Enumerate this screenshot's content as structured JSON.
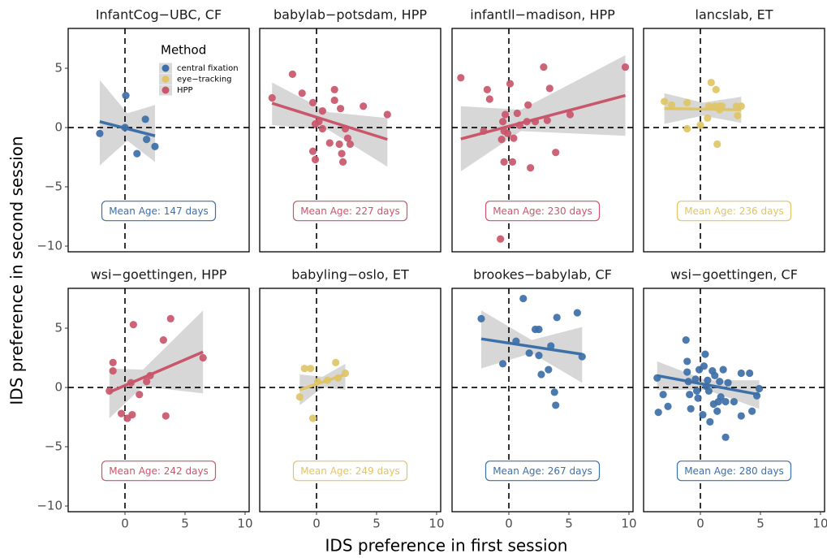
{
  "xlabel": "IDS preference in first session",
  "ylabel": "IDS preference in second session",
  "xlim": [
    -4.73,
    10.34
  ],
  "ylim": [
    -10.48,
    8.36
  ],
  "xticks": [
    0,
    5,
    10
  ],
  "yticks": [
    {
      "value": -10,
      "label": "−10"
    },
    {
      "value": -5,
      "label": "−5"
    },
    0,
    5
  ],
  "hline": 0,
  "vline": 0,
  "legend": {
    "title": "Method",
    "items": [
      {
        "name": "central fixation",
        "color": "#3d6fa8"
      },
      {
        "name": "eye−tracking",
        "color": "#e0c566"
      },
      {
        "name": "HPP",
        "color": "#c9566b"
      }
    ]
  },
  "chart_data": [
    {
      "type": "scatter",
      "title": "InfantCog−UBC, CF",
      "color": "#3d6fa8",
      "annotation": "Mean Age: 147 days",
      "x": [
        -2.1,
        0.07,
        0,
        1.7,
        1.8,
        1.0,
        2.5
      ],
      "y": [
        -0.5,
        2.7,
        0,
        0.7,
        -1.0,
        -2.2,
        -1.6
      ],
      "fit": {
        "x": [
          -2.1,
          2.5
        ],
        "y": [
          0.5,
          -0.7
        ]
      },
      "band": {
        "x": [
          -2.1,
          0.2,
          2.5
        ],
        "upper": [
          4.0,
          1.2,
          1.9
        ],
        "lower": [
          -3.2,
          -1.1,
          -2.9
        ]
      }
    },
    {
      "type": "scatter",
      "title": "babylab−potsdam, HPP",
      "color": "#c9566b",
      "annotation": "Mean Age: 227 days",
      "x": [
        -3.7,
        -2.0,
        -1.2,
        -0.3,
        0.2,
        0.5,
        -0.1,
        1.5,
        1.5,
        2.0,
        3.9,
        5.9,
        -0.3,
        -0.1,
        1.1,
        1.9,
        2.4,
        2.6,
        2.8,
        2.1,
        2.2,
        0.5
      ],
      "y": [
        2.5,
        4.5,
        2.9,
        2.1,
        0.5,
        1.4,
        0.3,
        3.2,
        2.3,
        1.6,
        1.8,
        1.1,
        -2.0,
        -2.7,
        -1.3,
        -1.4,
        -0.1,
        -0.9,
        -1.4,
        -2.2,
        -2.9,
        -0.1
      ],
      "fit": {
        "x": [
          -3.7,
          5.9
        ],
        "y": [
          2.05,
          -1.0
        ]
      },
      "band": {
        "x": [
          -3.7,
          1,
          5.9
        ],
        "upper": [
          3.8,
          1.3,
          0.8
        ],
        "lower": [
          0.2,
          -0.2,
          -3.3
        ]
      }
    },
    {
      "type": "scatter",
      "title": "infantll−madison, HPP",
      "color": "#c9566b",
      "annotation": "Mean Age: 230 days",
      "x": [
        -4.0,
        -1.8,
        -1.6,
        0.1,
        -2.1,
        -0.5,
        -0.4,
        -0.1,
        -0.3,
        -0.6,
        -0.4,
        0.3,
        0.4,
        0.7,
        0.9,
        1.5,
        1.6,
        1.8,
        2.2,
        2.9,
        3.2,
        3.4,
        3.9,
        5.1,
        -0.7,
        9.7
      ],
      "y": [
        4.2,
        3.2,
        2.4,
        3.7,
        -0.3,
        0.5,
        -0.3,
        -0.5,
        1.1,
        -1.0,
        -2.9,
        -2.9,
        -0.9,
        1.2,
        0.2,
        0.5,
        1.9,
        -3.4,
        0.5,
        5.1,
        0.6,
        3.3,
        -2.1,
        1.1,
        -9.4,
        5.1
      ],
      "fit": {
        "x": [
          -4.0,
          9.7
        ],
        "y": [
          -0.96,
          2.7
        ]
      },
      "band": {
        "x": [
          -4.0,
          1,
          9.7
        ],
        "upper": [
          1.8,
          1.5,
          6.1
        ],
        "lower": [
          -3.7,
          -0.3,
          -0.7
        ]
      }
    },
    {
      "type": "scatter",
      "title": "lancslab, ET",
      "color": "#e0c566",
      "annotation": "Mean Age: 236 days",
      "x": [
        -3.0,
        -2.4,
        -1.1,
        -1.1,
        0,
        0.6,
        0.7,
        0.9,
        1.3,
        1.2,
        1.6,
        1.6,
        1.8,
        1.4,
        3.0,
        3.1,
        3.4
      ],
      "y": [
        2.2,
        1.9,
        2.1,
        -0.1,
        0.2,
        0.8,
        1.8,
        3.8,
        3.2,
        1.8,
        1.5,
        1.8,
        1.8,
        -1.4,
        1.8,
        1.0,
        1.8
      ],
      "fit": {
        "x": [
          -3.0,
          3.4
        ],
        "y": [
          1.6,
          1.5
        ]
      },
      "band": {
        "x": [
          -3.0,
          0.2,
          3.4
        ],
        "upper": [
          2.9,
          2.1,
          2.6
        ],
        "lower": [
          0.3,
          1.0,
          0.4
        ]
      }
    },
    {
      "type": "scatter",
      "title": "wsi−goettingen, HPP",
      "color": "#c9566b",
      "annotation": "Mean Age: 242 days",
      "x": [
        -1.3,
        -1.0,
        -1.0,
        -0.3,
        0.2,
        0.6,
        0.5,
        0.7,
        1.2,
        1.8,
        2.1,
        3.2,
        3.4,
        3.8,
        6.5
      ],
      "y": [
        -0.3,
        2.1,
        1.4,
        -2.2,
        -2.6,
        -2.3,
        0.4,
        5.3,
        -0.6,
        0.5,
        1.0,
        4.0,
        -2.4,
        5.8,
        2.5
      ],
      "fit": {
        "x": [
          -1.3,
          6.5
        ],
        "y": [
          -0.4,
          3.0
        ]
      },
      "band": {
        "x": [
          -1.3,
          1.5,
          6.5
        ],
        "upper": [
          1.6,
          1.5,
          6.5
        ],
        "lower": [
          -2.6,
          0.1,
          -0.5
        ]
      }
    },
    {
      "type": "scatter",
      "title": "babyling−oslo, ET",
      "color": "#e0c566",
      "annotation": "Mean Age: 249 days",
      "x": [
        -1.4,
        -1.0,
        -0.5,
        -0.3,
        0.1,
        0.9,
        1.6,
        1.8,
        2.4
      ],
      "y": [
        -0.8,
        1.6,
        1.6,
        -2.6,
        0.5,
        0.6,
        2.1,
        0.8,
        1.2
      ],
      "fit": {
        "x": [
          -1.4,
          2.4
        ],
        "y": [
          -0.2,
          1.1
        ]
      },
      "band": {
        "x": [
          -1.4,
          0.5,
          2.4
        ],
        "upper": [
          1.1,
          0.9,
          2.0
        ],
        "lower": [
          -1.5,
          0,
          -0.2
        ]
      }
    },
    {
      "type": "scatter",
      "title": "brookes−babylab, CF",
      "color": "#3d6fa8",
      "annotation": "Mean Age: 267 days",
      "x": [
        -2.3,
        -0.5,
        0.6,
        1.2,
        1.7,
        2.2,
        2.5,
        2.5,
        2.7,
        3.5,
        3.3,
        4.0,
        3.8,
        3.9,
        5.7,
        6.1
      ],
      "y": [
        5.8,
        2.0,
        3.9,
        7.5,
        2.9,
        4.9,
        4.9,
        2.7,
        1.1,
        3.5,
        1.5,
        5.9,
        -0.4,
        -1.5,
        6.3,
        2.6
      ],
      "fit": {
        "x": [
          -2.3,
          6.1
        ],
        "y": [
          4.1,
          2.8
        ]
      },
      "band": {
        "x": [
          -2.3,
          1.9,
          6.1
        ],
        "upper": [
          6.5,
          4.0,
          5.1
        ],
        "lower": [
          1.6,
          2.9,
          0.4
        ]
      }
    },
    {
      "type": "scatter",
      "title": "wsi−goettingen, CF",
      "color": "#3d6fa8",
      "annotation": "Mean Age: 280 days",
      "x": [
        -3.6,
        -3.5,
        -3.1,
        -2.7,
        -1.2,
        -1.1,
        -1.1,
        -1.0,
        -0.9,
        -0.8,
        -0.4,
        -0.3,
        -0.2,
        -0.1,
        0.2,
        0.3,
        0.4,
        0.5,
        0.6,
        0.7,
        0.8,
        1.0,
        1.1,
        1.2,
        1.4,
        1.5,
        1.6,
        1.7,
        1.9,
        2.1,
        2.1,
        2.3,
        2.8,
        3.4,
        3.4,
        4.1,
        4.3,
        4.9,
        4.7
      ],
      "y": [
        0.8,
        -2.1,
        -0.6,
        -1.6,
        4.0,
        2.2,
        1.3,
        0.5,
        -0.6,
        -1.8,
        0.7,
        -0.3,
        -0.9,
        1.5,
        -2.3,
        1.8,
        2.8,
        0.1,
        0.6,
        -0.3,
        -2.9,
        1.4,
        -1.4,
        1.0,
        -2.0,
        -1.2,
        0.5,
        -0.8,
        1.5,
        -1.2,
        -4.2,
        0.4,
        -1.2,
        -2.4,
        1.2,
        1.2,
        -2.0,
        -0.1,
        -0.7
      ],
      "fit": {
        "x": [
          -3.6,
          4.9
        ],
        "y": [
          1.0,
          -0.6
        ]
      },
      "band": {
        "x": [
          -3.6,
          0.5,
          4.9
        ],
        "upper": [
          2.2,
          0.6,
          0.6
        ],
        "lower": [
          -0.2,
          -0.2,
          -1.8
        ]
      }
    }
  ]
}
